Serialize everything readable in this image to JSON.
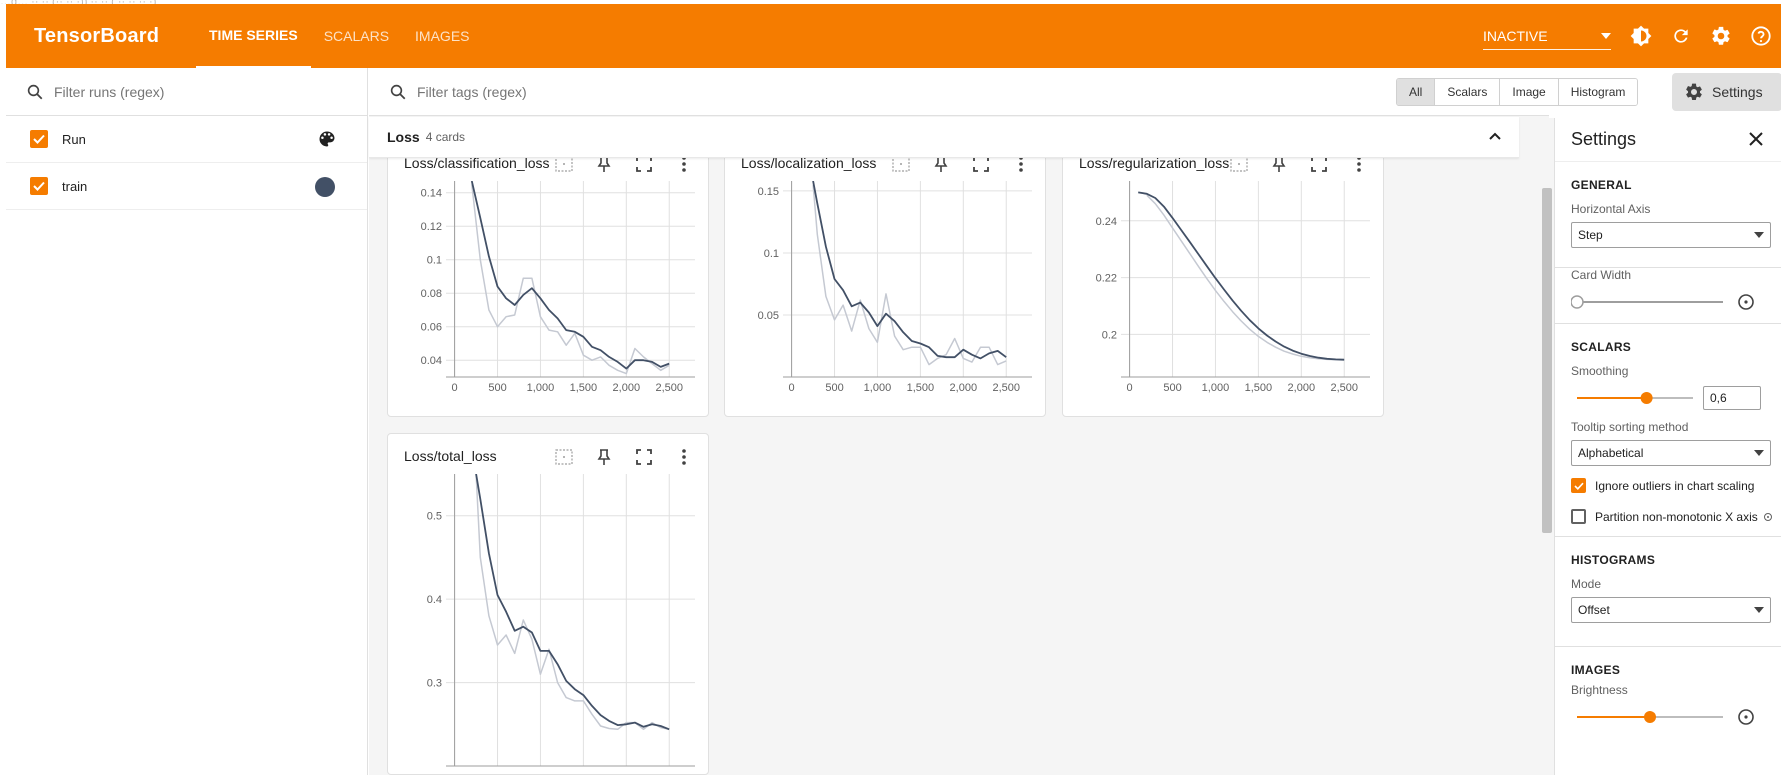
{
  "top_line": "…g… ·· ·· (·· ·· ·)) ·· ·· ( ·· ·· ·· ·)",
  "header": {
    "brand": "TensorBoard",
    "tabs": [
      {
        "label": "TIME SERIES",
        "active": true
      },
      {
        "label": "SCALARS",
        "active": false
      },
      {
        "label": "IMAGES",
        "active": false
      }
    ],
    "status_select": "INACTIVE",
    "icons": [
      "theme-icon",
      "refresh-icon",
      "settings-gear-icon",
      "help-icon"
    ],
    "color": "#f57c00"
  },
  "runs": {
    "filter_placeholder": "Filter runs (regex)",
    "items": [
      {
        "label": "Run",
        "checked": true,
        "color_control": "palette-icon"
      },
      {
        "label": "train",
        "checked": true,
        "color": "#425066"
      }
    ]
  },
  "toolbar": {
    "filter_placeholder": "Filter tags (regex)",
    "types": [
      "All",
      "Scalars",
      "Image",
      "Histogram"
    ],
    "selected_type": "All",
    "settings_label": "Settings"
  },
  "group": {
    "name": "Loss",
    "count_label": "4 cards"
  },
  "cards": [
    {
      "title": "Loss/classification_loss"
    },
    {
      "title": "Loss/localization_loss"
    },
    {
      "title": "Loss/regularization_loss"
    },
    {
      "title": "Loss/total_loss"
    }
  ],
  "chart_data": [
    {
      "type": "line",
      "title": "Loss/classification_loss",
      "x_ticks": [
        "0",
        "500",
        "1,000",
        "1,500",
        "2,000",
        "2,500"
      ],
      "y_ticks": [
        "0.04",
        "0.06",
        "0.08",
        "0.1",
        "0.12",
        "0.14"
      ],
      "xlim": [
        -100,
        2800
      ],
      "ylim": [
        0.03,
        0.147
      ],
      "series": [
        {
          "style": "smoothed",
          "color": "#425066",
          "x": [
            200,
            300,
            400,
            500,
            600,
            700,
            800,
            900,
            1000,
            1100,
            1200,
            1300,
            1400,
            1500,
            1600,
            1700,
            1800,
            1900,
            2000,
            2100,
            2200,
            2300,
            2400,
            2500
          ],
          "y": [
            0.147,
            0.125,
            0.102,
            0.084,
            0.077,
            0.073,
            0.079,
            0.083,
            0.077,
            0.07,
            0.065,
            0.058,
            0.057,
            0.054,
            0.048,
            0.046,
            0.042,
            0.039,
            0.035,
            0.04,
            0.04,
            0.039,
            0.036,
            0.038
          ]
        },
        {
          "style": "raw",
          "color": "#c5c9d2",
          "x": [
            200,
            300,
            400,
            500,
            600,
            700,
            800,
            900,
            1000,
            1100,
            1200,
            1300,
            1400,
            1500,
            1600,
            1700,
            1800,
            1900,
            2000,
            2100,
            2200,
            2300,
            2400,
            2500
          ],
          "y": [
            0.145,
            0.1,
            0.07,
            0.06,
            0.066,
            0.067,
            0.089,
            0.089,
            0.066,
            0.058,
            0.057,
            0.049,
            0.056,
            0.043,
            0.04,
            0.042,
            0.037,
            0.034,
            0.032,
            0.047,
            0.042,
            0.038,
            0.034,
            0.037
          ]
        }
      ]
    },
    {
      "type": "line",
      "title": "Loss/localization_loss",
      "x_ticks": [
        "0",
        "500",
        "1,000",
        "1,500",
        "2,000",
        "2,500"
      ],
      "y_ticks": [
        "0.05",
        "0.1",
        "0.15"
      ],
      "xlim": [
        -100,
        2800
      ],
      "ylim": [
        0,
        0.158
      ],
      "series": [
        {
          "style": "smoothed",
          "color": "#425066",
          "x": [
            250,
            300,
            400,
            500,
            600,
            700,
            800,
            900,
            1000,
            1100,
            1200,
            1300,
            1400,
            1500,
            1600,
            1700,
            1800,
            1900,
            2000,
            2100,
            2200,
            2300,
            2400,
            2500
          ],
          "y": [
            0.158,
            0.14,
            0.105,
            0.079,
            0.07,
            0.057,
            0.06,
            0.052,
            0.041,
            0.051,
            0.045,
            0.036,
            0.029,
            0.027,
            0.024,
            0.017,
            0.016,
            0.016,
            0.022,
            0.018,
            0.015,
            0.019,
            0.021,
            0.016
          ]
        },
        {
          "style": "raw",
          "color": "#c5c9d2",
          "x": [
            250,
            300,
            400,
            500,
            600,
            700,
            800,
            900,
            1000,
            1100,
            1200,
            1300,
            1400,
            1500,
            1600,
            1700,
            1800,
            1900,
            2000,
            2100,
            2200,
            2300,
            2400,
            2500
          ],
          "y": [
            0.155,
            0.115,
            0.065,
            0.046,
            0.058,
            0.037,
            0.062,
            0.039,
            0.028,
            0.067,
            0.033,
            0.022,
            0.024,
            0.024,
            0.01,
            0.015,
            0.018,
            0.031,
            0.015,
            0.012,
            0.024,
            0.024,
            0.01,
            0.013
          ]
        }
      ]
    },
    {
      "type": "line",
      "title": "Loss/regularization_loss",
      "x_ticks": [
        "0",
        "500",
        "1,000",
        "1,500",
        "2,000",
        "2,500"
      ],
      "y_ticks": [
        "0.2",
        "0.22",
        "0.24"
      ],
      "xlim": [
        -100,
        2800
      ],
      "ylim": [
        0.185,
        0.254
      ],
      "series": [
        {
          "style": "smoothed",
          "color": "#425066",
          "x": [
            100,
            200,
            300,
            400,
            500,
            600,
            700,
            800,
            900,
            1000,
            1100,
            1200,
            1300,
            1400,
            1500,
            1600,
            1700,
            1800,
            1900,
            2000,
            2100,
            2200,
            2300,
            2400,
            2500
          ],
          "y": [
            0.25,
            0.2495,
            0.248,
            0.245,
            0.241,
            0.2368,
            0.2326,
            0.2283,
            0.224,
            0.2198,
            0.2158,
            0.2119,
            0.2083,
            0.205,
            0.2021,
            0.1996,
            0.1975,
            0.1957,
            0.1943,
            0.1932,
            0.1924,
            0.1918,
            0.1914,
            0.1912,
            0.1911
          ]
        },
        {
          "style": "raw",
          "color": "#c5c9d2",
          "x": [
            200,
            300,
            400,
            500,
            600,
            700,
            800,
            900,
            1000,
            1100,
            1200,
            1300,
            1400,
            1500,
            1600,
            1700,
            1800,
            1900,
            2000,
            2100,
            2200,
            2300,
            2400,
            2500
          ],
          "y": [
            0.249,
            0.246,
            0.242,
            0.2375,
            0.233,
            0.2285,
            0.224,
            0.2196,
            0.2155,
            0.2116,
            0.208,
            0.2047,
            0.2018,
            0.1993,
            0.1972,
            0.1955,
            0.1941,
            0.1931,
            0.1923,
            0.1918,
            0.1914,
            0.1912,
            0.1911,
            0.191
          ]
        }
      ]
    },
    {
      "type": "line",
      "title": "Loss/total_loss",
      "x_ticks": [],
      "y_ticks": [
        "0.3",
        "0.4",
        "0.5"
      ],
      "xlim": [
        -100,
        2800
      ],
      "ylim": [
        0.2,
        0.55
      ],
      "series": [
        {
          "style": "smoothed",
          "color": "#425066",
          "x": [
            250,
            300,
            400,
            500,
            600,
            700,
            800,
            900,
            1000,
            1100,
            1200,
            1300,
            1400,
            1500,
            1600,
            1700,
            1800,
            1900,
            2000,
            2100,
            2200,
            2300,
            2400,
            2500
          ],
          "y": [
            0.55,
            0.52,
            0.455,
            0.405,
            0.385,
            0.362,
            0.367,
            0.36,
            0.338,
            0.338,
            0.322,
            0.302,
            0.292,
            0.285,
            0.272,
            0.261,
            0.254,
            0.249,
            0.25,
            0.252,
            0.247,
            0.25,
            0.248,
            0.244
          ]
        },
        {
          "style": "raw",
          "color": "#c5c9d2",
          "x": [
            250,
            300,
            400,
            500,
            600,
            700,
            800,
            900,
            1000,
            1100,
            1200,
            1300,
            1400,
            1500,
            1600,
            1700,
            1800,
            1900,
            2000,
            2100,
            2200,
            2300,
            2400,
            2500
          ],
          "y": [
            0.55,
            0.45,
            0.38,
            0.345,
            0.357,
            0.335,
            0.375,
            0.352,
            0.31,
            0.34,
            0.3,
            0.282,
            0.278,
            0.278,
            0.262,
            0.248,
            0.245,
            0.244,
            0.252,
            0.252,
            0.244,
            0.252,
            0.246,
            0.244
          ]
        }
      ]
    }
  ],
  "settings": {
    "title": "Settings",
    "general": {
      "title": "GENERAL",
      "horizontal_axis_label": "Horizontal Axis",
      "horizontal_axis_value": "Step",
      "card_width_label": "Card Width",
      "card_width_level": 0
    },
    "scalars": {
      "title": "SCALARS",
      "smoothing_label": "Smoothing",
      "smoothing_value": "0,6",
      "smoothing_level": 0.6,
      "tooltip_label": "Tooltip sorting method",
      "tooltip_value": "Alphabetical",
      "ignore_outliers": {
        "label": "Ignore outliers in chart scaling",
        "checked": true
      },
      "partition": {
        "label": "Partition non-monotonic X axis",
        "checked": false
      }
    },
    "histograms": {
      "title": "HISTOGRAMS",
      "mode_label": "Mode",
      "mode_value": "Offset"
    },
    "images": {
      "title": "IMAGES",
      "brightness_label": "Brightness",
      "brightness_level": 0.5
    }
  }
}
